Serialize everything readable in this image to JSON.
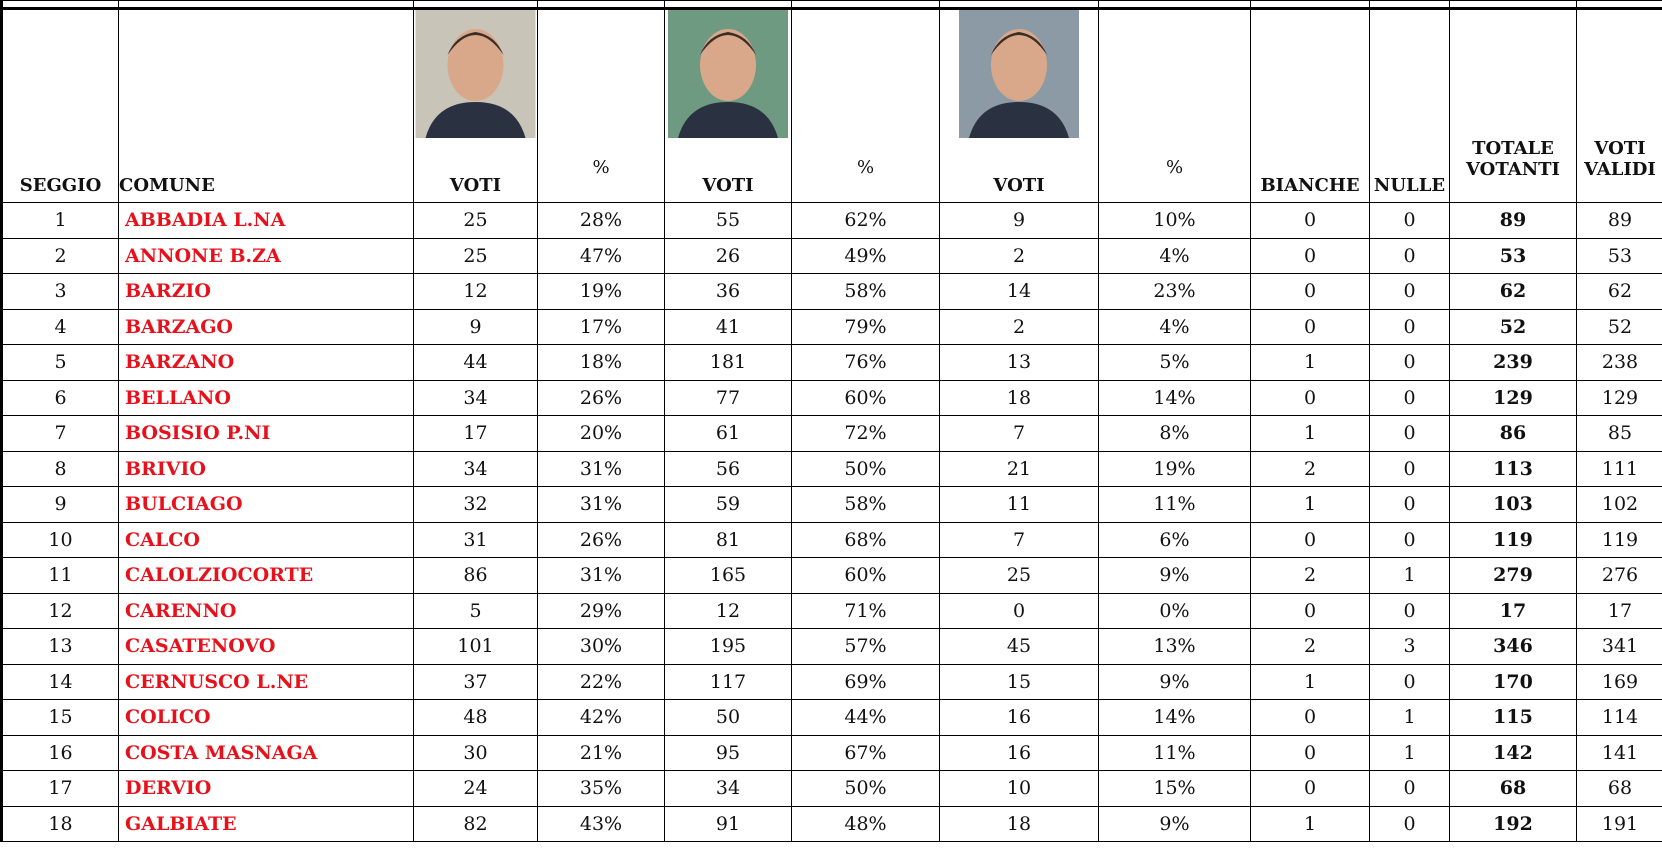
{
  "table": {
    "header": [
      "SEGGIO",
      "COMUNE",
      "VOTI",
      "%",
      "VOTI",
      "%",
      "VOTI",
      "%",
      "BIANCHE",
      "NULLE",
      "TOTALE VOTANTI",
      "VOTI VALIDI"
    ],
    "rows": [
      [
        1,
        "ABBADIA L.NA",
        25,
        "28%",
        55,
        "62%",
        9,
        "10%",
        0,
        0,
        89,
        89
      ],
      [
        2,
        "ANNONE B.ZA",
        25,
        "47%",
        26,
        "49%",
        2,
        "4%",
        0,
        0,
        53,
        53
      ],
      [
        3,
        "BARZIO",
        12,
        "19%",
        36,
        "58%",
        14,
        "23%",
        0,
        0,
        62,
        62
      ],
      [
        4,
        "BARZAGO",
        9,
        "17%",
        41,
        "79%",
        2,
        "4%",
        0,
        0,
        52,
        52
      ],
      [
        5,
        "BARZANO",
        44,
        "18%",
        181,
        "76%",
        13,
        "5%",
        1,
        0,
        239,
        238
      ],
      [
        6,
        "BELLANO",
        34,
        "26%",
        77,
        "60%",
        18,
        "14%",
        0,
        0,
        129,
        129
      ],
      [
        7,
        "BOSISIO P.NI",
        17,
        "20%",
        61,
        "72%",
        7,
        "8%",
        1,
        0,
        86,
        85
      ],
      [
        8,
        "BRIVIO",
        34,
        "31%",
        56,
        "50%",
        21,
        "19%",
        2,
        0,
        113,
        111
      ],
      [
        9,
        "BULCIAGO",
        32,
        "31%",
        59,
        "58%",
        11,
        "11%",
        1,
        0,
        103,
        102
      ],
      [
        10,
        "CALCO",
        31,
        "26%",
        81,
        "68%",
        7,
        "6%",
        0,
        0,
        119,
        119
      ],
      [
        11,
        "CALOLZIOCORTE",
        86,
        "31%",
        165,
        "60%",
        25,
        "9%",
        2,
        1,
        279,
        276
      ],
      [
        12,
        "CARENNO",
        5,
        "29%",
        12,
        "71%",
        0,
        "0%",
        0,
        0,
        17,
        17
      ],
      [
        13,
        "CASATENOVO",
        101,
        "30%",
        195,
        "57%",
        45,
        "13%",
        2,
        3,
        346,
        341
      ],
      [
        14,
        "CERNUSCO L.NE",
        37,
        "22%",
        117,
        "69%",
        15,
        "9%",
        1,
        0,
        170,
        169
      ],
      [
        15,
        "COLICO",
        48,
        "42%",
        50,
        "44%",
        16,
        "14%",
        0,
        1,
        115,
        114
      ],
      [
        16,
        "COSTA MASNAGA",
        30,
        "21%",
        95,
        "67%",
        16,
        "11%",
        0,
        1,
        142,
        141
      ],
      [
        17,
        "DERVIO",
        24,
        "35%",
        34,
        "50%",
        10,
        "15%",
        0,
        0,
        68,
        68
      ],
      [
        18,
        "GALBIATE",
        82,
        "43%",
        91,
        "48%",
        18,
        "9%",
        1,
        0,
        192,
        191
      ]
    ]
  }
}
